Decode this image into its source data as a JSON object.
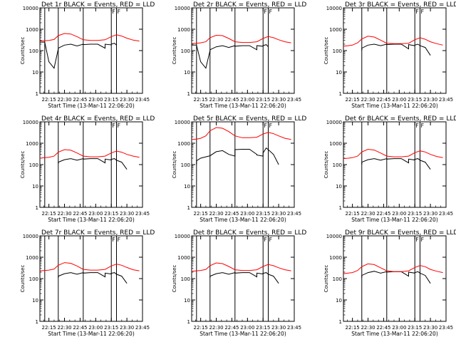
{
  "common": {
    "xlabel": "Start Time (13-Mar-11 22:06:20)",
    "ylabel": "Counts/sec",
    "x_ticks": [
      "22:15",
      "22:30",
      "22:45",
      "23:00",
      "23:15",
      "23:30",
      "23:45"
    ],
    "y_ticks": [
      "1",
      "10",
      "100",
      "1000",
      "10000"
    ],
    "marker_labels": [
      "F",
      "F"
    ],
    "colors": {
      "black_series": "#000000",
      "red_series": "#ff0000",
      "axes": "#000000",
      "background": "#ffffff"
    }
  },
  "chart_data": [
    {
      "type": "line",
      "title": "Det 1r BLACK = Events, RED = LLD",
      "ylog": true,
      "xlabel": "Start Time (13-Mar-11 22:06:20)",
      "ylabel": "Counts/sec",
      "xlim": [
        "22:06:20",
        "23:45"
      ],
      "ylim": [
        1,
        10000
      ],
      "vlines": [
        "22:11",
        "22:24",
        "22:48",
        "23:15",
        "23:20"
      ],
      "series": [
        {
          "name": "BLACK",
          "x": [
            "22:06",
            "22:11",
            "22:15",
            "22:20",
            "22:24",
            "22:24",
            "22:30",
            "22:36",
            "22:42",
            "22:48",
            "22:48",
            "22:55",
            "23:02",
            "23:09",
            "23:09",
            "23:15",
            "23:15",
            "23:18",
            "23:20"
          ],
          "y": [
            250,
            250,
            30,
            15,
            120,
            130,
            180,
            200,
            165,
            200,
            190,
            200,
            200,
            130,
            200,
            185,
            200,
            220,
            180
          ]
        },
        {
          "name": "RED",
          "x": [
            "22:06",
            "22:11",
            "22:15",
            "22:20",
            "22:24",
            "22:30",
            "22:36",
            "22:42",
            "22:48",
            "22:55",
            "23:02",
            "23:09",
            "23:15",
            "23:20",
            "23:25",
            "23:30",
            "23:36",
            "23:42"
          ],
          "y": [
            280,
            290,
            300,
            330,
            500,
            630,
            600,
            450,
            320,
            300,
            300,
            320,
            450,
            550,
            480,
            380,
            310,
            280
          ]
        }
      ]
    },
    {
      "type": "line",
      "title": "Det 2r BLACK = Events, RED = LLD",
      "ylog": true,
      "xlabel": "Start Time (13-Mar-11 22:06:20)",
      "ylabel": "Counts/sec",
      "xlim": [
        "22:06:20",
        "23:45"
      ],
      "ylim": [
        1,
        10000
      ],
      "vlines": [
        "22:11",
        "22:24",
        "22:48",
        "23:15",
        "23:20"
      ],
      "series": [
        {
          "name": "BLACK",
          "x": [
            "22:06",
            "22:11",
            "22:15",
            "22:20",
            "22:24",
            "22:24",
            "22:30",
            "22:36",
            "22:42",
            "22:48",
            "22:48",
            "22:55",
            "23:02",
            "23:09",
            "23:09",
            "23:15",
            "23:15",
            "23:18",
            "23:20"
          ],
          "y": [
            180,
            180,
            30,
            15,
            100,
            110,
            150,
            170,
            140,
            170,
            160,
            170,
            170,
            110,
            170,
            160,
            170,
            190,
            150
          ]
        },
        {
          "name": "RED",
          "x": [
            "22:06",
            "22:11",
            "22:15",
            "22:20",
            "22:24",
            "22:30",
            "22:36",
            "22:42",
            "22:48",
            "22:55",
            "23:02",
            "23:09",
            "23:15",
            "23:20",
            "23:25",
            "23:30",
            "23:36",
            "23:42"
          ],
          "y": [
            210,
            220,
            230,
            260,
            400,
            520,
            500,
            370,
            260,
            240,
            240,
            260,
            370,
            460,
            400,
            320,
            260,
            230
          ]
        }
      ]
    },
    {
      "type": "line",
      "title": "Det 3r BLACK = Events, RED = LLD",
      "ylog": true,
      "xlabel": "Start Time (13-Mar-11 22:06:20)",
      "ylabel": "Counts/sec",
      "xlim": [
        "22:06:20",
        "23:45"
      ],
      "ylim": [
        1,
        10000
      ],
      "vlines": [
        "22:24",
        "22:48",
        "23:15",
        "23:20"
      ],
      "series": [
        {
          "name": "BLACK",
          "x": [
            "22:24",
            "22:24",
            "22:30",
            "22:36",
            "22:42",
            "22:48",
            "22:48",
            "22:55",
            "23:02",
            "23:09",
            "23:09",
            "23:15",
            "23:15",
            "23:18",
            "23:20",
            "23:25",
            "23:30"
          ],
          "y": [
            100,
            130,
            180,
            200,
            170,
            200,
            190,
            200,
            200,
            120,
            190,
            170,
            180,
            200,
            170,
            140,
            60
          ]
        },
        {
          "name": "RED",
          "x": [
            "22:06",
            "22:11",
            "22:15",
            "22:20",
            "22:24",
            "22:30",
            "22:36",
            "22:42",
            "22:48",
            "22:55",
            "23:02",
            "23:09",
            "23:15",
            "23:20",
            "23:25",
            "23:30",
            "23:36",
            "23:42"
          ],
          "y": [
            160,
            170,
            180,
            230,
            350,
            470,
            430,
            310,
            220,
            210,
            210,
            220,
            320,
            400,
            340,
            260,
            210,
            180
          ]
        }
      ]
    },
    {
      "type": "line",
      "title": "Det 4r BLACK = Events, RED = LLD",
      "ylog": true,
      "xlabel": "Start Time (13-Mar-11 22:06:20)",
      "ylabel": "Counts/sec",
      "xlim": [
        "22:06:20",
        "23:45"
      ],
      "ylim": [
        1,
        10000
      ],
      "vlines": [
        "22:11",
        "22:24",
        "22:48",
        "23:15",
        "23:20"
      ],
      "series": [
        {
          "name": "BLACK",
          "x": [
            "22:24",
            "22:24",
            "22:30",
            "22:36",
            "22:42",
            "22:48",
            "22:48",
            "22:55",
            "23:02",
            "23:09",
            "23:09",
            "23:15",
            "23:15",
            "23:18",
            "23:20",
            "23:25",
            "23:30"
          ],
          "y": [
            110,
            130,
            170,
            190,
            160,
            190,
            180,
            190,
            190,
            120,
            180,
            165,
            175,
            190,
            160,
            130,
            60
          ]
        },
        {
          "name": "RED",
          "x": [
            "22:06",
            "22:11",
            "22:15",
            "22:20",
            "22:24",
            "22:30",
            "22:36",
            "22:42",
            "22:48",
            "22:55",
            "23:02",
            "23:09",
            "23:15",
            "23:20",
            "23:25",
            "23:30",
            "23:36",
            "23:42"
          ],
          "y": [
            200,
            210,
            220,
            250,
            380,
            500,
            470,
            350,
            250,
            230,
            230,
            250,
            350,
            430,
            380,
            300,
            250,
            220
          ]
        }
      ]
    },
    {
      "type": "line",
      "title": "Det 5r BLACK = Events, RED = LLD",
      "ylog": true,
      "xlabel": "Start Time (13-Mar-11 22:06:20)",
      "ylabel": "Counts/sec",
      "xlim": [
        "22:06:20",
        "23:45"
      ],
      "ylim": [
        1,
        10000
      ],
      "vlines": [
        "22:11",
        "22:24",
        "22:48",
        "23:15",
        "23:20"
      ],
      "series": [
        {
          "name": "BLACK",
          "x": [
            "22:11",
            "22:11",
            "22:15",
            "22:20",
            "22:24",
            "22:30",
            "22:36",
            "22:42",
            "22:48",
            "22:48",
            "22:55",
            "23:02",
            "23:09",
            "23:09",
            "23:15",
            "23:15",
            "23:18",
            "23:20",
            "23:25",
            "23:30"
          ],
          "y": [
            100,
            150,
            200,
            230,
            260,
            400,
            450,
            300,
            250,
            500,
            520,
            520,
            300,
            280,
            250,
            350,
            600,
            500,
            300,
            100
          ]
        },
        {
          "name": "RED",
          "x": [
            "22:06",
            "22:11",
            "22:15",
            "22:20",
            "22:24",
            "22:30",
            "22:36",
            "22:42",
            "22:48",
            "22:55",
            "23:02",
            "23:09",
            "23:15",
            "23:20",
            "23:25",
            "23:30",
            "23:36",
            "23:42"
          ],
          "y": [
            1500,
            1550,
            1700,
            2200,
            3800,
            5400,
            5000,
            3500,
            2200,
            1800,
            1800,
            1900,
            2700,
            3200,
            2800,
            2200,
            1700,
            1500
          ]
        }
      ]
    },
    {
      "type": "line",
      "title": "Det 6r BLACK = Events, RED = LLD",
      "ylog": true,
      "xlabel": "Start Time (13-Mar-11 22:06:20)",
      "ylabel": "Counts/sec",
      "xlim": [
        "22:06:20",
        "23:45"
      ],
      "ylim": [
        1,
        10000
      ],
      "vlines": [
        "22:24",
        "22:48",
        "23:15",
        "23:20"
      ],
      "series": [
        {
          "name": "BLACK",
          "x": [
            "22:24",
            "22:24",
            "22:30",
            "22:36",
            "22:42",
            "22:48",
            "22:48",
            "22:55",
            "23:02",
            "23:09",
            "23:09",
            "23:15",
            "23:15",
            "23:18",
            "23:20",
            "23:25",
            "23:30"
          ],
          "y": [
            100,
            130,
            170,
            190,
            160,
            190,
            180,
            190,
            190,
            120,
            180,
            165,
            175,
            190,
            160,
            130,
            60
          ]
        },
        {
          "name": "RED",
          "x": [
            "22:06",
            "22:11",
            "22:15",
            "22:20",
            "22:24",
            "22:30",
            "22:36",
            "22:42",
            "22:48",
            "22:55",
            "23:02",
            "23:09",
            "23:15",
            "23:20",
            "23:25",
            "23:30",
            "23:36",
            "23:42"
          ],
          "y": [
            190,
            200,
            210,
            250,
            390,
            520,
            480,
            350,
            250,
            230,
            230,
            250,
            360,
            440,
            390,
            300,
            240,
            210
          ]
        }
      ]
    },
    {
      "type": "line",
      "title": "Det 7r BLACK = Events, RED = LLD",
      "ylog": true,
      "xlabel": "Start Time (13-Mar-11 22:06:20)",
      "ylabel": "Counts/sec",
      "xlim": [
        "22:06:20",
        "23:45"
      ],
      "ylim": [
        1,
        10000
      ],
      "vlines": [
        "22:11",
        "22:24",
        "22:48",
        "23:15",
        "23:20"
      ],
      "series": [
        {
          "name": "BLACK",
          "x": [
            "22:24",
            "22:24",
            "22:30",
            "22:36",
            "22:42",
            "22:48",
            "22:48",
            "22:55",
            "23:02",
            "23:09",
            "23:09",
            "23:15",
            "23:15",
            "23:18",
            "23:20",
            "23:25",
            "23:30"
          ],
          "y": [
            110,
            130,
            170,
            190,
            160,
            190,
            180,
            190,
            190,
            120,
            180,
            165,
            175,
            190,
            160,
            130,
            60
          ]
        },
        {
          "name": "RED",
          "x": [
            "22:06",
            "22:11",
            "22:15",
            "22:20",
            "22:24",
            "22:30",
            "22:36",
            "22:42",
            "22:48",
            "22:55",
            "23:02",
            "23:09",
            "23:15",
            "23:20",
            "23:25",
            "23:30",
            "23:36",
            "23:42"
          ],
          "y": [
            230,
            240,
            250,
            280,
            420,
            560,
            520,
            390,
            270,
            250,
            250,
            270,
            390,
            480,
            420,
            330,
            260,
            230
          ]
        }
      ]
    },
    {
      "type": "line",
      "title": "Det 8r BLACK = Events, RED = LLD",
      "ylog": true,
      "xlabel": "Start Time (13-Mar-11 22:06:20)",
      "ylabel": "Counts/sec",
      "xlim": [
        "22:06:20",
        "23:45"
      ],
      "ylim": [
        1,
        10000
      ],
      "vlines": [
        "22:11",
        "22:24",
        "22:48",
        "23:15",
        "23:20"
      ],
      "series": [
        {
          "name": "BLACK",
          "x": [
            "22:24",
            "22:24",
            "22:30",
            "22:36",
            "22:42",
            "22:48",
            "22:48",
            "22:55",
            "23:02",
            "23:09",
            "23:09",
            "23:15",
            "23:15",
            "23:18",
            "23:20",
            "23:25",
            "23:30"
          ],
          "y": [
            110,
            130,
            170,
            190,
            160,
            190,
            180,
            190,
            190,
            120,
            180,
            165,
            175,
            190,
            160,
            130,
            60
          ]
        },
        {
          "name": "RED",
          "x": [
            "22:06",
            "22:11",
            "22:15",
            "22:20",
            "22:24",
            "22:30",
            "22:36",
            "22:42",
            "22:48",
            "22:55",
            "23:02",
            "23:09",
            "23:15",
            "23:20",
            "23:25",
            "23:30",
            "23:36",
            "23:42"
          ],
          "y": [
            220,
            230,
            240,
            270,
            400,
            540,
            500,
            370,
            260,
            240,
            240,
            260,
            370,
            460,
            400,
            320,
            260,
            230
          ]
        }
      ]
    },
    {
      "type": "line",
      "title": "Det 9r BLACK = Events, RED = LLD",
      "ylog": true,
      "xlabel": "Start Time (13-Mar-11 22:06:20)",
      "ylabel": "Counts/sec",
      "xlim": [
        "22:06:20",
        "23:45"
      ],
      "ylim": [
        1,
        10000
      ],
      "vlines": [
        "22:24",
        "22:48",
        "23:15",
        "23:20"
      ],
      "series": [
        {
          "name": "BLACK",
          "x": [
            "22:24",
            "22:24",
            "22:30",
            "22:36",
            "22:42",
            "22:48",
            "22:48",
            "22:55",
            "23:02",
            "23:09",
            "23:09",
            "23:15",
            "23:15",
            "23:18",
            "23:20",
            "23:25",
            "23:30"
          ],
          "y": [
            110,
            140,
            190,
            220,
            180,
            210,
            200,
            210,
            210,
            130,
            200,
            180,
            190,
            210,
            180,
            140,
            60
          ]
        },
        {
          "name": "RED",
          "x": [
            "22:06",
            "22:11",
            "22:15",
            "22:20",
            "22:24",
            "22:30",
            "22:36",
            "22:42",
            "22:48",
            "22:55",
            "23:02",
            "23:09",
            "23:15",
            "23:20",
            "23:25",
            "23:30",
            "23:36",
            "23:42"
          ],
          "y": [
            170,
            180,
            190,
            240,
            360,
            490,
            450,
            320,
            230,
            210,
            210,
            230,
            330,
            410,
            360,
            270,
            220,
            190
          ]
        }
      ]
    }
  ]
}
